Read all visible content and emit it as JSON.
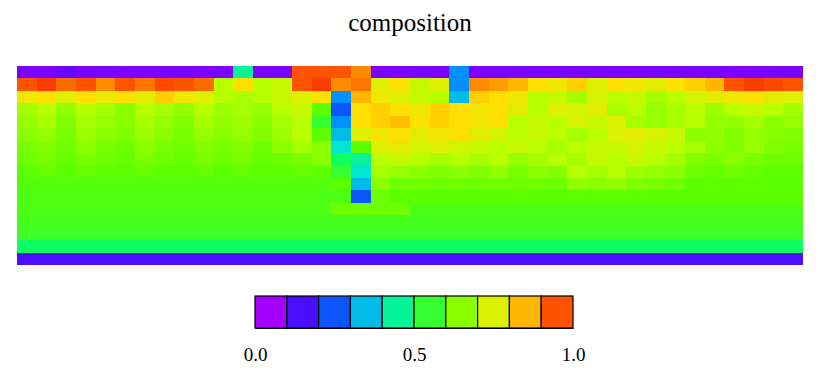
{
  "chart_data": {
    "type": "heatmap",
    "title": "composition",
    "tick_labels": false,
    "cells": [
      [
        0.1,
        0.1,
        0.12,
        0.1,
        0.1,
        0.1,
        0.1,
        0.1,
        0.1,
        0.1,
        0.1,
        0.45,
        0.1,
        0.1,
        0.95,
        0.95,
        0.95,
        0.9,
        0.1,
        0.1,
        0.1,
        0.1,
        0.3,
        0.1,
        0.1,
        0.1,
        0.1,
        0.1,
        0.1,
        0.1,
        0.1,
        0.1,
        0.1,
        0.1,
        0.1,
        0.1,
        0.1,
        0.1,
        0.1,
        0.1
      ],
      [
        0.95,
        0.97,
        0.93,
        0.95,
        0.9,
        0.95,
        0.92,
        0.96,
        0.95,
        0.93,
        0.7,
        0.8,
        0.7,
        0.72,
        0.95,
        0.97,
        0.9,
        0.92,
        0.75,
        0.8,
        0.72,
        0.75,
        0.3,
        0.9,
        0.88,
        0.85,
        0.8,
        0.78,
        0.82,
        0.75,
        0.8,
        0.78,
        0.76,
        0.8,
        0.82,
        0.85,
        0.95,
        0.97,
        0.96,
        0.95
      ],
      [
        0.78,
        0.8,
        0.75,
        0.8,
        0.77,
        0.8,
        0.76,
        0.82,
        0.78,
        0.75,
        0.7,
        0.68,
        0.7,
        0.72,
        0.75,
        0.8,
        0.3,
        0.85,
        0.78,
        0.75,
        0.72,
        0.7,
        0.35,
        0.82,
        0.8,
        0.78,
        0.7,
        0.72,
        0.68,
        0.74,
        0.7,
        0.72,
        0.68,
        0.7,
        0.74,
        0.76,
        0.78,
        0.8,
        0.76,
        0.75
      ],
      [
        0.68,
        0.7,
        0.66,
        0.7,
        0.68,
        0.65,
        0.7,
        0.68,
        0.66,
        0.7,
        0.67,
        0.68,
        0.66,
        0.7,
        0.72,
        0.6,
        0.25,
        0.8,
        0.82,
        0.8,
        0.78,
        0.82,
        0.8,
        0.78,
        0.8,
        0.76,
        0.7,
        0.75,
        0.74,
        0.76,
        0.68,
        0.7,
        0.66,
        0.68,
        0.7,
        0.67,
        0.7,
        0.72,
        0.7,
        0.68
      ],
      [
        0.66,
        0.68,
        0.64,
        0.68,
        0.66,
        0.65,
        0.68,
        0.66,
        0.64,
        0.68,
        0.66,
        0.67,
        0.65,
        0.68,
        0.7,
        0.55,
        0.3,
        0.8,
        0.82,
        0.84,
        0.8,
        0.82,
        0.8,
        0.78,
        0.8,
        0.7,
        0.72,
        0.7,
        0.74,
        0.72,
        0.75,
        0.68,
        0.66,
        0.68,
        0.7,
        0.66,
        0.66,
        0.68,
        0.65,
        0.66
      ],
      [
        0.65,
        0.66,
        0.63,
        0.67,
        0.65,
        0.64,
        0.67,
        0.65,
        0.63,
        0.66,
        0.65,
        0.66,
        0.64,
        0.67,
        0.7,
        0.6,
        0.35,
        0.75,
        0.78,
        0.8,
        0.76,
        0.78,
        0.8,
        0.76,
        0.74,
        0.7,
        0.72,
        0.7,
        0.68,
        0.7,
        0.75,
        0.76,
        0.74,
        0.72,
        0.65,
        0.66,
        0.64,
        0.66,
        0.65,
        0.64
      ],
      [
        0.63,
        0.64,
        0.62,
        0.65,
        0.63,
        0.62,
        0.65,
        0.63,
        0.62,
        0.64,
        0.63,
        0.64,
        0.62,
        0.65,
        0.68,
        0.65,
        0.4,
        0.6,
        0.75,
        0.76,
        0.74,
        0.75,
        0.73,
        0.72,
        0.7,
        0.72,
        0.7,
        0.68,
        0.7,
        0.72,
        0.72,
        0.74,
        0.72,
        0.7,
        0.68,
        0.65,
        0.64,
        0.66,
        0.64,
        0.63
      ],
      [
        0.62,
        0.63,
        0.61,
        0.63,
        0.62,
        0.61,
        0.63,
        0.62,
        0.61,
        0.63,
        0.62,
        0.63,
        0.61,
        0.62,
        0.63,
        0.65,
        0.5,
        0.45,
        0.7,
        0.72,
        0.7,
        0.68,
        0.7,
        0.68,
        0.7,
        0.66,
        0.68,
        0.7,
        0.68,
        0.72,
        0.7,
        0.72,
        0.7,
        0.68,
        0.64,
        0.63,
        0.65,
        0.63,
        0.62,
        0.62
      ],
      [
        0.6,
        0.61,
        0.6,
        0.61,
        0.6,
        0.6,
        0.61,
        0.6,
        0.6,
        0.61,
        0.6,
        0.61,
        0.6,
        0.6,
        0.61,
        0.6,
        0.55,
        0.4,
        0.68,
        0.66,
        0.65,
        0.64,
        0.65,
        0.64,
        0.66,
        0.63,
        0.65,
        0.64,
        0.7,
        0.68,
        0.7,
        0.67,
        0.66,
        0.65,
        0.62,
        0.61,
        0.62,
        0.61,
        0.6,
        0.6
      ],
      [
        0.59,
        0.59,
        0.59,
        0.59,
        0.59,
        0.59,
        0.59,
        0.59,
        0.59,
        0.59,
        0.59,
        0.59,
        0.59,
        0.59,
        0.59,
        0.59,
        0.6,
        0.35,
        0.65,
        0.62,
        0.62,
        0.62,
        0.62,
        0.62,
        0.62,
        0.62,
        0.62,
        0.62,
        0.66,
        0.65,
        0.66,
        0.64,
        0.63,
        0.62,
        0.6,
        0.6,
        0.6,
        0.6,
        0.6,
        0.6
      ],
      [
        0.58,
        0.58,
        0.58,
        0.58,
        0.58,
        0.58,
        0.58,
        0.58,
        0.58,
        0.58,
        0.58,
        0.58,
        0.58,
        0.58,
        0.58,
        0.58,
        0.58,
        0.25,
        0.62,
        0.6,
        0.6,
        0.6,
        0.6,
        0.6,
        0.6,
        0.6,
        0.6,
        0.6,
        0.6,
        0.6,
        0.6,
        0.6,
        0.6,
        0.6,
        0.6,
        0.6,
        0.6,
        0.6,
        0.6,
        0.6
      ],
      [
        0.58,
        0.58,
        0.58,
        0.58,
        0.58,
        0.58,
        0.58,
        0.58,
        0.58,
        0.58,
        0.58,
        0.58,
        0.58,
        0.58,
        0.58,
        0.58,
        0.62,
        0.62,
        0.62,
        0.62,
        0.58,
        0.58,
        0.58,
        0.58,
        0.58,
        0.58,
        0.58,
        0.58,
        0.58,
        0.58,
        0.58,
        0.58,
        0.58,
        0.58,
        0.58,
        0.58,
        0.58,
        0.58,
        0.58,
        0.58
      ],
      [
        0.57,
        0.57,
        0.57,
        0.57,
        0.57,
        0.57,
        0.57,
        0.57,
        0.57,
        0.57,
        0.57,
        0.57,
        0.57,
        0.57,
        0.57,
        0.57,
        0.57,
        0.57,
        0.57,
        0.57,
        0.57,
        0.57,
        0.57,
        0.57,
        0.57,
        0.57,
        0.57,
        0.57,
        0.57,
        0.57,
        0.57,
        0.57,
        0.57,
        0.57,
        0.57,
        0.57,
        0.57,
        0.57,
        0.57,
        0.57
      ],
      [
        0.56,
        0.56,
        0.56,
        0.56,
        0.56,
        0.56,
        0.56,
        0.56,
        0.56,
        0.56,
        0.56,
        0.56,
        0.56,
        0.56,
        0.56,
        0.56,
        0.56,
        0.56,
        0.56,
        0.56,
        0.56,
        0.56,
        0.56,
        0.56,
        0.56,
        0.56,
        0.56,
        0.56,
        0.56,
        0.56,
        0.56,
        0.56,
        0.56,
        0.56,
        0.56,
        0.56,
        0.56,
        0.56,
        0.56,
        0.56
      ],
      [
        0.5,
        0.5,
        0.5,
        0.5,
        0.5,
        0.5,
        0.5,
        0.5,
        0.5,
        0.5,
        0.5,
        0.5,
        0.5,
        0.5,
        0.5,
        0.5,
        0.5,
        0.5,
        0.5,
        0.5,
        0.5,
        0.5,
        0.5,
        0.5,
        0.5,
        0.5,
        0.5,
        0.5,
        0.5,
        0.5,
        0.5,
        0.5,
        0.5,
        0.5,
        0.5,
        0.5,
        0.5,
        0.5,
        0.5,
        0.5
      ],
      [
        0.15,
        0.15,
        0.15,
        0.15,
        0.15,
        0.15,
        0.15,
        0.15,
        0.15,
        0.15,
        0.15,
        0.15,
        0.15,
        0.15,
        0.15,
        0.15,
        0.15,
        0.15,
        0.15,
        0.15,
        0.15,
        0.15,
        0.15,
        0.15,
        0.15,
        0.15,
        0.15,
        0.15,
        0.15,
        0.15,
        0.15,
        0.15,
        0.15,
        0.15,
        0.15,
        0.15,
        0.15,
        0.15,
        0.15,
        0.15
      ]
    ],
    "colorbar": {
      "range": [
        0,
        1
      ],
      "levels": 10,
      "ticks": [
        {
          "value": 0,
          "label": "0.0"
        },
        0.5,
        {
          "value": 1,
          "label": "1.0"
        }
      ]
    }
  }
}
